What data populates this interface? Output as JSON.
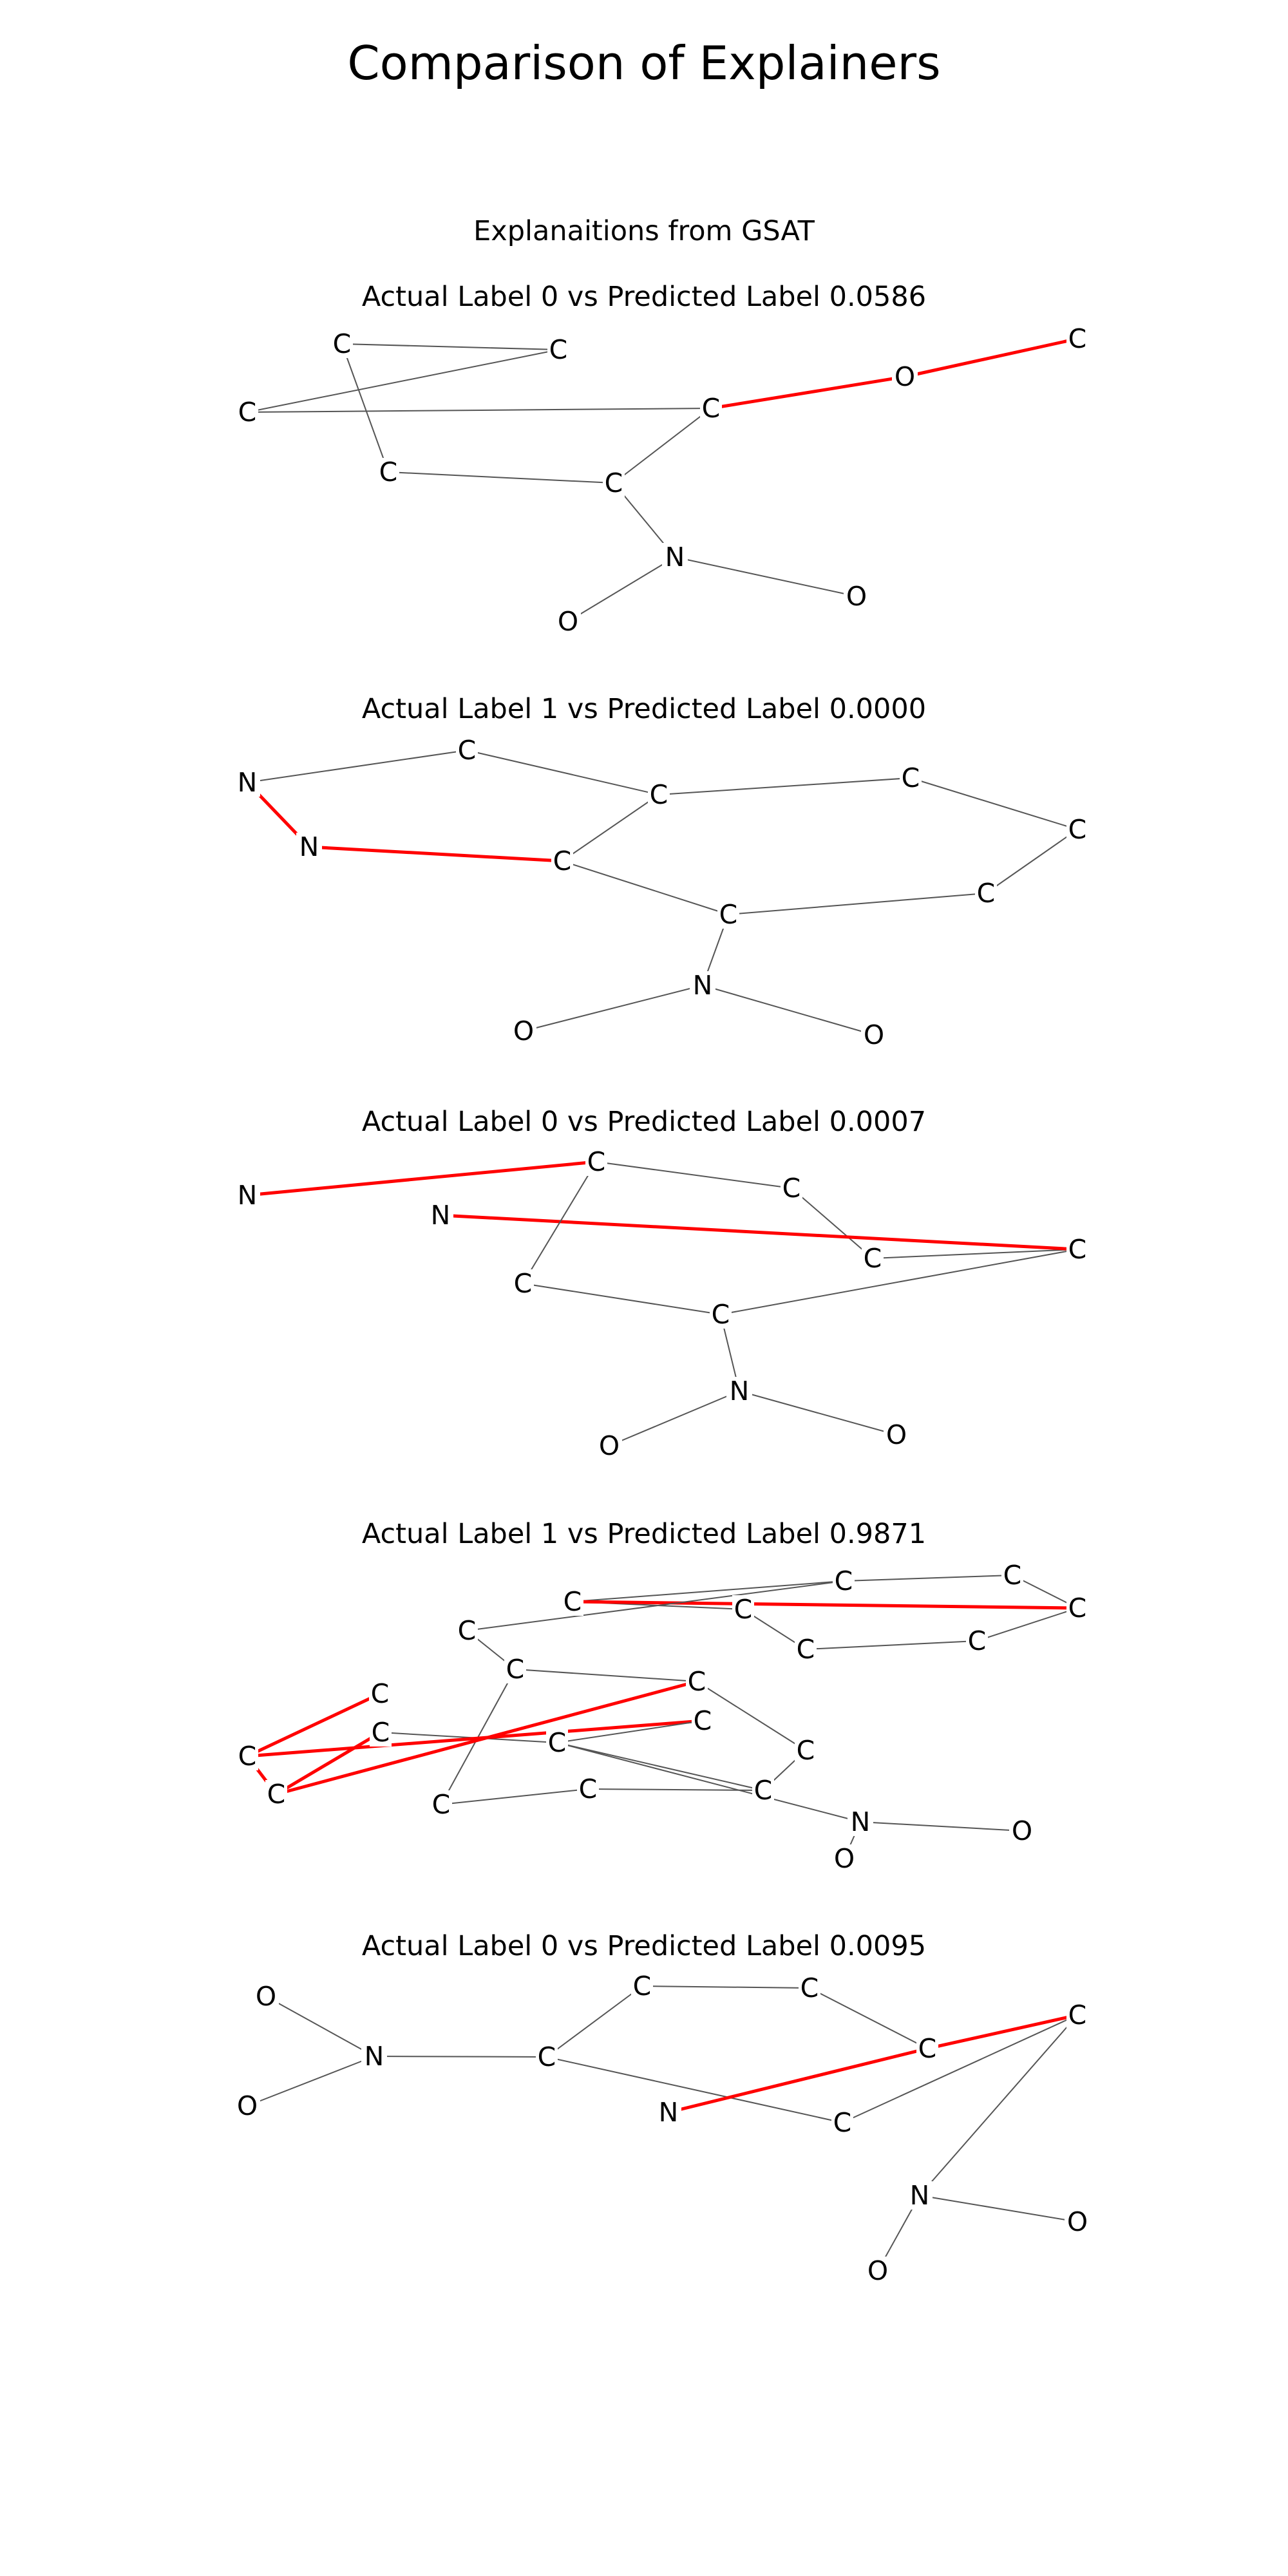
{
  "title": "Comparison of Explainers",
  "subtitle": "Explanaitions from GSAT",
  "colors": {
    "important_edge": "#ff0000",
    "normal_edge": "#555555",
    "label": "#000000"
  },
  "panels": [
    {
      "title": "Actual Label 0 vs Predicted Label 0.0586",
      "nodes": [
        "C",
        "C",
        "C",
        "C",
        "C",
        "C",
        "O",
        "C",
        "N",
        "O",
        "O"
      ],
      "edges": [
        [
          0,
          1,
          0
        ],
        [
          1,
          2,
          0
        ],
        [
          0,
          3,
          0
        ],
        [
          3,
          4,
          0
        ],
        [
          2,
          5,
          0
        ],
        [
          5,
          4,
          0
        ],
        [
          5,
          6,
          1
        ],
        [
          6,
          7,
          1
        ],
        [
          4,
          8,
          0
        ],
        [
          8,
          9,
          0
        ],
        [
          8,
          10,
          0
        ]
      ]
    },
    {
      "title": "Actual Label 1 vs Predicted Label 0.0000",
      "nodes": [
        "N",
        "C",
        "C",
        "C",
        "C",
        "N",
        "C",
        "C",
        "C",
        "N",
        "O",
        "O"
      ],
      "edges": [
        [
          0,
          1,
          0
        ],
        [
          1,
          2,
          0
        ],
        [
          2,
          3,
          0
        ],
        [
          3,
          4,
          0
        ],
        [
          0,
          5,
          1
        ],
        [
          5,
          6,
          1
        ],
        [
          2,
          6,
          0
        ],
        [
          6,
          7,
          0
        ],
        [
          7,
          8,
          0
        ],
        [
          8,
          4,
          0
        ],
        [
          7,
          9,
          0
        ],
        [
          9,
          10,
          0
        ],
        [
          9,
          11,
          0
        ]
      ]
    },
    {
      "title": "Actual Label 0 vs Predicted Label 0.0007",
      "nodes": [
        "N",
        "C",
        "C",
        "C",
        "C",
        "N",
        "C",
        "C",
        "N",
        "O",
        "O"
      ],
      "edges": [
        [
          0,
          1,
          1
        ],
        [
          1,
          2,
          0
        ],
        [
          2,
          3,
          0
        ],
        [
          3,
          4,
          0
        ],
        [
          4,
          5,
          1
        ],
        [
          1,
          6,
          0
        ],
        [
          6,
          7,
          0
        ],
        [
          7,
          4,
          0
        ],
        [
          7,
          8,
          0
        ],
        [
          8,
          9,
          0
        ],
        [
          8,
          10,
          0
        ]
      ]
    },
    {
      "title": "Actual Label 1 vs Predicted Label 0.9871",
      "nodes": [
        "C",
        "C",
        "C",
        "C",
        "C",
        "C",
        "C",
        "C",
        "C",
        "C",
        "C",
        "C",
        "C",
        "C",
        "C",
        "C",
        "C",
        "C",
        "C",
        "C",
        "N",
        "O",
        "O"
      ],
      "edges": [
        [
          0,
          1,
          0
        ],
        [
          1,
          2,
          0
        ],
        [
          2,
          3,
          0
        ],
        [
          3,
          4,
          0
        ],
        [
          4,
          5,
          0
        ],
        [
          5,
          6,
          0
        ],
        [
          6,
          0,
          0
        ],
        [
          2,
          6,
          1
        ],
        [
          8,
          7,
          0
        ],
        [
          7,
          0,
          0
        ],
        [
          8,
          9,
          0
        ],
        [
          9,
          10,
          0
        ],
        [
          10,
          11,
          0
        ],
        [
          11,
          12,
          0
        ],
        [
          12,
          13,
          0
        ],
        [
          13,
          8,
          0
        ],
        [
          9,
          14,
          1
        ],
        [
          14,
          15,
          1
        ],
        [
          15,
          16,
          1
        ],
        [
          14,
          17,
          1
        ],
        [
          17,
          18,
          0
        ],
        [
          18,
          11,
          0
        ],
        [
          15,
          19,
          1
        ],
        [
          19,
          18,
          0
        ],
        [
          18,
          20,
          0
        ],
        [
          20,
          21,
          0
        ],
        [
          20,
          22,
          0
        ]
      ]
    },
    {
      "title": "Actual Label 0 vs Predicted Label 0.0095",
      "nodes": [
        "O",
        "N",
        "O",
        "C",
        "C",
        "C",
        "C",
        "C",
        "N",
        "C",
        "N",
        "O",
        "O"
      ],
      "edges": [
        [
          0,
          1,
          0
        ],
        [
          2,
          1,
          0
        ],
        [
          1,
          3,
          0
        ],
        [
          3,
          4,
          0
        ],
        [
          4,
          5,
          0
        ],
        [
          5,
          6,
          0
        ],
        [
          6,
          7,
          1
        ],
        [
          3,
          9,
          0
        ],
        [
          9,
          7,
          0
        ],
        [
          7,
          10,
          0
        ],
        [
          10,
          11,
          0
        ],
        [
          10,
          12,
          0
        ],
        [
          6,
          8,
          1
        ]
      ]
    }
  ]
}
